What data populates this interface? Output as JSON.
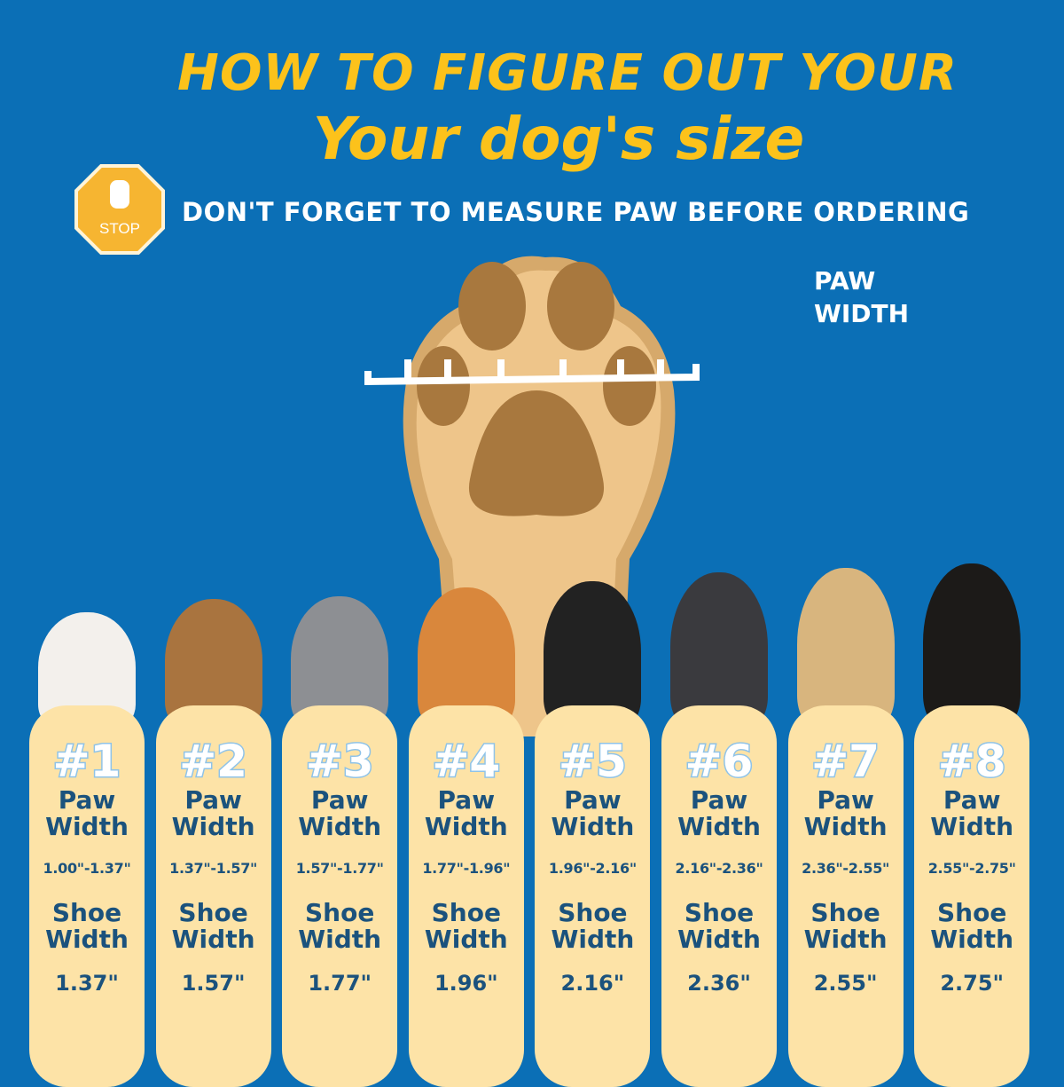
{
  "header": {
    "title_line1": "HOW TO FIGURE OUT YOUR",
    "title_line2": "Your dog's size",
    "stop_sign": "STOP",
    "subtitle": "DON'T FORGET TO MEASURE PAW BEFORE ORDERING"
  },
  "diagram": {
    "label_line1": "PAW",
    "label_line2": "WIDTH"
  },
  "colors": {
    "background": "#0b6fb6",
    "title": "#fcc21b",
    "card": "#fde3a7",
    "card_text": "#1b527d"
  },
  "labels": {
    "paw": "Paw",
    "width": "Width",
    "shoe": "Shoe"
  },
  "sizes": [
    {
      "num": "#1",
      "paw_width": "1.00\"-1.37\"",
      "shoe_width": "1.37\"",
      "dog_color": "#f3f0ec"
    },
    {
      "num": "#2",
      "paw_width": "1.37\"-1.57\"",
      "shoe_width": "1.57\"",
      "dog_color": "#a9743f"
    },
    {
      "num": "#3",
      "paw_width": "1.57\"-1.77\"",
      "shoe_width": "1.77\"",
      "dog_color": "#8d8f93"
    },
    {
      "num": "#4",
      "paw_width": "1.77\"-1.96\"",
      "shoe_width": "1.96\"",
      "dog_color": "#d9873c"
    },
    {
      "num": "#5",
      "paw_width": "1.96\"-2.16\"",
      "shoe_width": "2.16\"",
      "dog_color": "#222222"
    },
    {
      "num": "#6",
      "paw_width": "2.16\"-2.36\"",
      "shoe_width": "2.36\"",
      "dog_color": "#3a3a3e"
    },
    {
      "num": "#7",
      "paw_width": "2.36\"-2.55\"",
      "shoe_width": "2.55\"",
      "dog_color": "#d8b57e"
    },
    {
      "num": "#8",
      "paw_width": "2.55\"-2.75\"",
      "shoe_width": "2.75\"",
      "dog_color": "#1c1a18"
    }
  ]
}
